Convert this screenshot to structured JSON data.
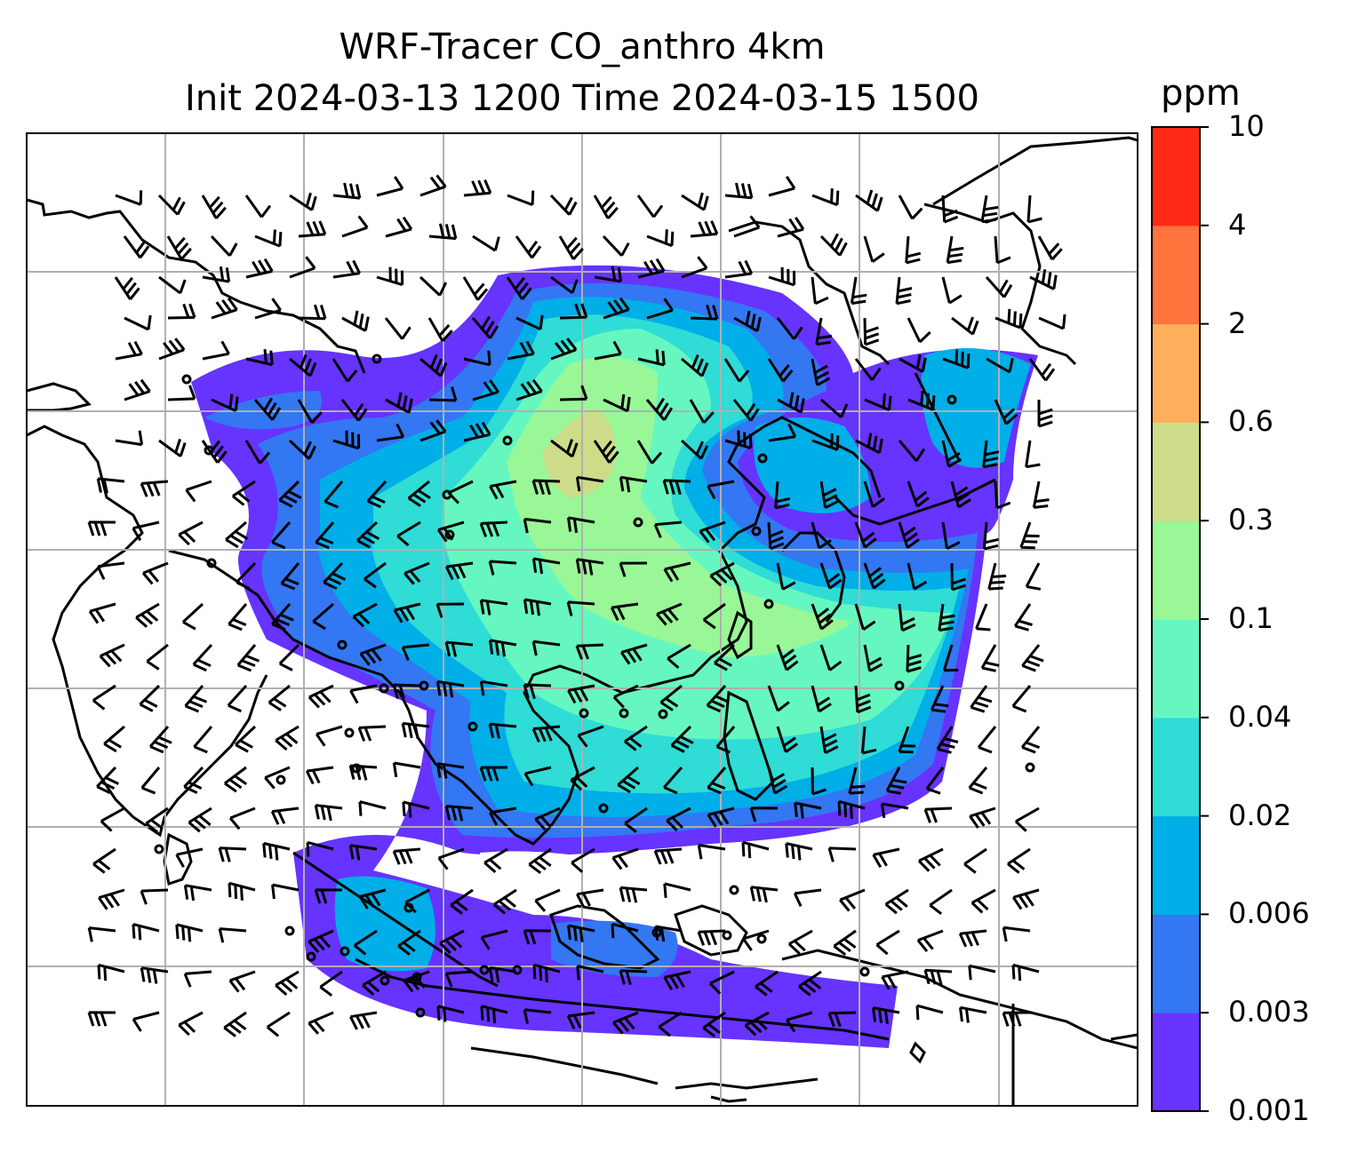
{
  "title": {
    "line1": "WRF-Tracer CO_anthro 4km",
    "line2": "Init 2024-03-13 1200 Time 2024-03-15 1500"
  },
  "colorbar": {
    "unit": "ppm",
    "levels": [
      "0.001",
      "0.003",
      "0.006",
      "0.02",
      "0.04",
      "0.1",
      "0.3",
      "0.6",
      "2",
      "4",
      "10"
    ],
    "colors": [
      "#6633ff",
      "#3377f2",
      "#00aee8",
      "#2fdcd6",
      "#66f7c1",
      "#99f797",
      "#cddc88",
      "#ffae5c",
      "#ff733c",
      "#ff2a16"
    ]
  },
  "map": {
    "gridlines": true,
    "overlay": "wind-barbs"
  }
}
